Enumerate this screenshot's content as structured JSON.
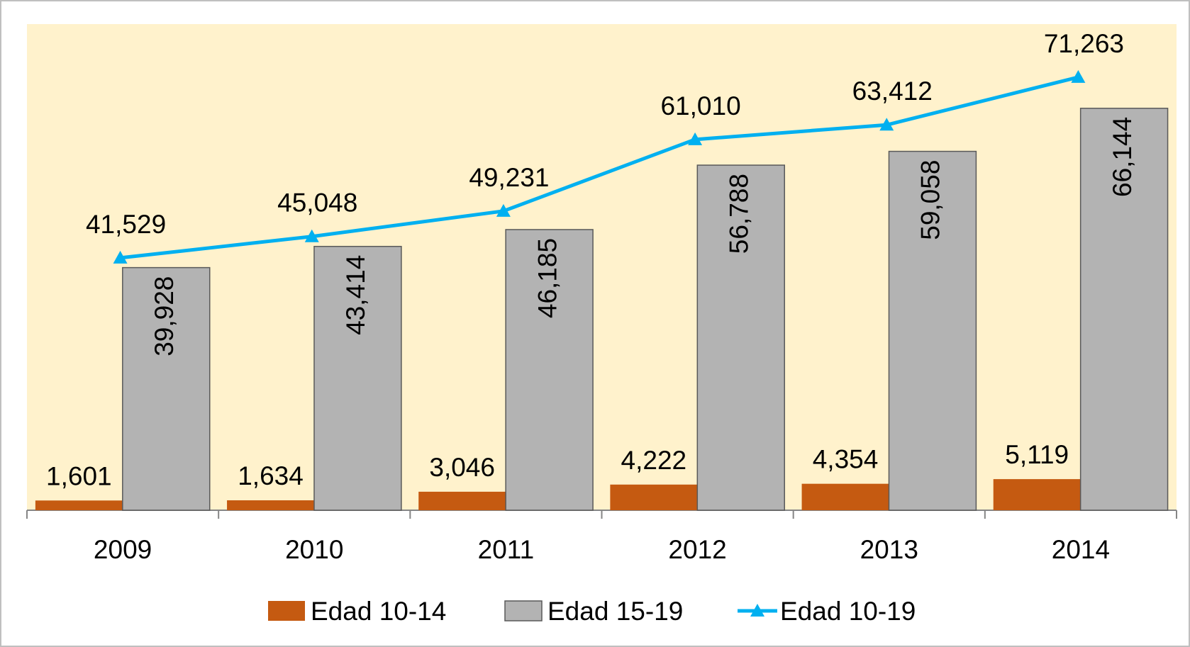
{
  "chart_data": {
    "type": "bar_line",
    "categories": [
      "2009",
      "2010",
      "2011",
      "2012",
      "2013",
      "2014"
    ],
    "ylim": [
      0,
      80000
    ],
    "series": [
      {
        "name": "Edad 10-14",
        "color": "#c55a11",
        "type": "bar",
        "values": [
          1601,
          1634,
          3046,
          4222,
          4354,
          5119
        ],
        "value_labels": [
          "1,601",
          "1,634",
          "3,046",
          "4,222",
          "4,354",
          "5,119"
        ]
      },
      {
        "name": "Edad 15-19",
        "color": "#b3b3b3",
        "type": "bar",
        "values": [
          39928,
          43414,
          46185,
          56788,
          59058,
          66144
        ],
        "value_labels": [
          "39,928",
          "43,414",
          "46,185",
          "56,788",
          "59,058",
          "66,144"
        ]
      },
      {
        "name": "Edad 10-19",
        "color": "#00b0f0",
        "type": "line",
        "values": [
          41529,
          45048,
          49231,
          61010,
          63412,
          71263
        ],
        "value_labels": [
          "41,529",
          "45,048",
          "49,231",
          "61,010",
          "63,412",
          "71,263"
        ]
      }
    ]
  }
}
